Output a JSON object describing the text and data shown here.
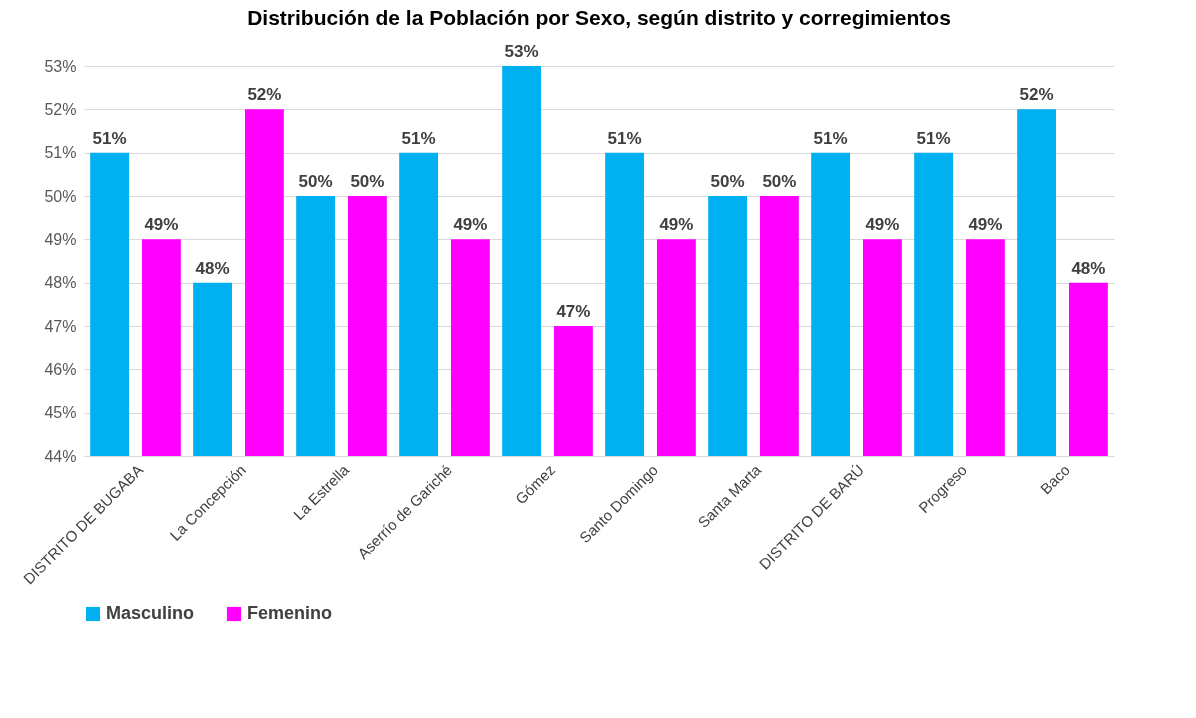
{
  "chart_data": {
    "type": "bar",
    "title": "Distribución de la Población por Sexo, según distrito y corregimientos",
    "categories": [
      "DISTRITO DE BUGABA",
      "La Concepción",
      "La Estrella",
      "Aserrío de Gariché",
      "Gómez",
      "Santo Domingo",
      "Santa Marta",
      "DISTRITO DE BARÚ",
      "Progreso",
      "Baco"
    ],
    "series": [
      {
        "name": "Masculino",
        "color": "#00b0f0",
        "values": [
          51,
          48,
          50,
          51,
          53,
          51,
          50,
          51,
          51,
          52
        ],
        "value_labels": [
          "51%",
          "48%",
          "50%",
          "51%",
          "53%",
          "51%",
          "50%",
          "51%",
          "51%",
          "52%"
        ]
      },
      {
        "name": "Femenino",
        "color": "#ff00ff",
        "values": [
          49,
          52,
          50,
          49,
          47,
          49,
          50,
          49,
          49,
          48
        ],
        "value_labels": [
          "49%",
          "52%",
          "50%",
          "49%",
          "47%",
          "49%",
          "50%",
          "49%",
          "49%",
          "48%"
        ]
      }
    ],
    "ylim": [
      44,
      53
    ],
    "yticks": [
      {
        "value": 44,
        "label": "44%"
      },
      {
        "value": 45,
        "label": "45%"
      },
      {
        "value": 46,
        "label": "46%"
      },
      {
        "value": 47,
        "label": "47%"
      },
      {
        "value": 48,
        "label": "48%"
      },
      {
        "value": 49,
        "label": "49%"
      },
      {
        "value": 50,
        "label": "50%"
      },
      {
        "value": 51,
        "label": "51%"
      },
      {
        "value": 52,
        "label": "52%"
      },
      {
        "value": 53,
        "label": "53%"
      }
    ],
    "grid": "y",
    "legend": "bottom"
  }
}
